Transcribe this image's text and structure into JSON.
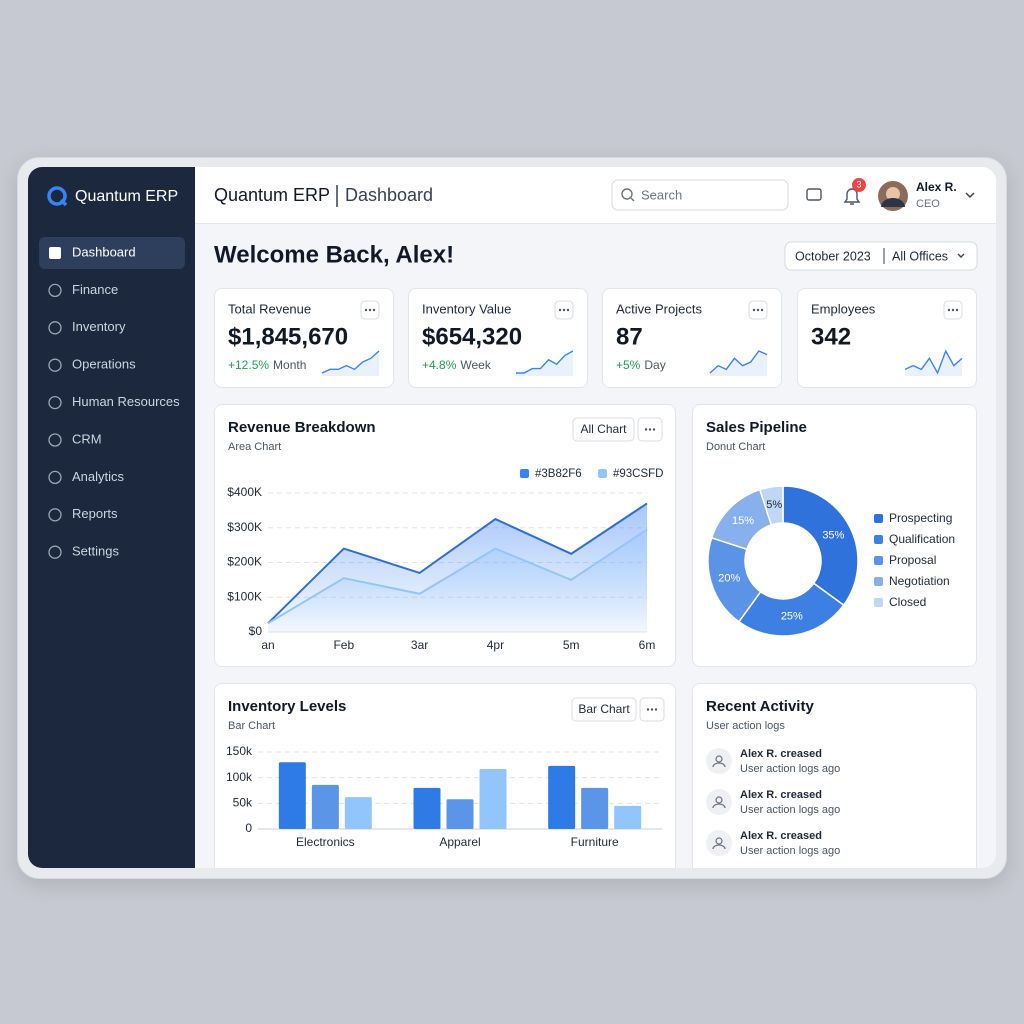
{
  "sidebar": {
    "brand": "Quantum ERP",
    "nav": [
      "Dashboard",
      "Finance",
      "Inventory",
      "Operations",
      "Human Resources",
      "CRM",
      "Analytics",
      "Reports",
      "Settings"
    ],
    "active": 0
  },
  "header": {
    "title": "Quantum ERP",
    "subtitle": "Dashboard",
    "search_placeholder": "Search",
    "notifications": 3,
    "user": {
      "name": "Alex R.",
      "role": "CEO"
    }
  },
  "welcome": "Welcome Back, Alex!",
  "filters": {
    "period": "October 2023",
    "office": "All Offices"
  },
  "kpis": [
    {
      "label": "Total Revenue",
      "value": "$1,845,670",
      "change": "+12.5%",
      "period": "Month",
      "sparkline": [
        2,
        3,
        3,
        4,
        3,
        5,
        6,
        8
      ]
    },
    {
      "label": "Inventory Value",
      "value": "$654,320",
      "change": "+4.8%",
      "period": "Week",
      "sparkline": [
        2,
        2,
        3,
        3,
        5,
        4,
        6,
        7
      ]
    },
    {
      "label": "Active Projects",
      "value": "87",
      "change": "+5%",
      "period": "Day",
      "sparkline": [
        2,
        4,
        3,
        6,
        4,
        5,
        8,
        7
      ]
    },
    {
      "label": "Employees",
      "value": "342",
      "sparkline": [
        3,
        4,
        3,
        6,
        2,
        8,
        4,
        6
      ]
    }
  ],
  "chart_data": [
    {
      "type": "area",
      "title": "Revenue Breakdown",
      "subtitle": "Area Chart",
      "button": "All Chart",
      "categories": [
        "an",
        "Feb",
        "3ar",
        "4pr",
        "5m",
        "6m"
      ],
      "series": [
        {
          "name": "#3B82F6",
          "color": "#3b82f6",
          "values": [
            25000,
            240000,
            170000,
            325000,
            225000,
            370000
          ]
        },
        {
          "name": "#93CSFD",
          "color": "#93c5fd",
          "values": [
            25000,
            155000,
            110000,
            240000,
            150000,
            295000
          ]
        }
      ],
      "ylim": [
        0,
        400000
      ],
      "yticks": [
        {
          "value": 0,
          "label": "$0"
        },
        {
          "value": 100000,
          "label": "$100K"
        },
        {
          "value": 200000,
          "label": "$200K"
        },
        {
          "value": 300000,
          "label": "$300K"
        },
        {
          "value": 400000,
          "label": "$400K"
        }
      ],
      "grid": true
    },
    {
      "type": "pie",
      "title": "Sales Pipeline",
      "subtitle": "Donut Chart",
      "categories": [
        "Prospecting",
        "Qualification",
        "Proposal",
        "Negotiation",
        "Closed"
      ],
      "values": [
        35,
        25,
        20,
        15,
        5
      ],
      "value_labels": [
        "35%",
        "25%",
        "20%",
        "15%",
        "5%"
      ],
      "colors": [
        "#2f72dc",
        "#3d7fe2",
        "#5b93e6",
        "#87b0ec",
        "#bfd6f5"
      ]
    },
    {
      "type": "bar",
      "title": "Inventory Levels",
      "subtitle": "Bar Chart",
      "button": "Bar Chart",
      "categories": [
        "Electronics",
        "Apparel",
        "Furniture"
      ],
      "series": [
        {
          "color": "#2f7be6",
          "values": [
            130000,
            80000,
            123000
          ]
        },
        {
          "color": "#5b95e8",
          "values": [
            86000,
            58000,
            80000
          ]
        },
        {
          "color": "#93c5fd",
          "values": [
            62000,
            117000,
            45000
          ]
        }
      ],
      "ylim": [
        0,
        150000
      ],
      "yticks": [
        0,
        {
          "value": 50000,
          "label": "50k"
        },
        {
          "value": 100000,
          "label": "100k"
        },
        {
          "value": 150000,
          "label": "150k"
        }
      ],
      "grid": true
    }
  ],
  "activity": {
    "title": "Recent Activity",
    "subtitle": "User action logs",
    "items": [
      {
        "title": "Alex R. creased",
        "detail": "User action logs ago"
      },
      {
        "title": "Alex R. creased",
        "detail": "User action logs ago"
      },
      {
        "title": "Alex R. creased",
        "detail": "User action logs ago"
      }
    ]
  }
}
